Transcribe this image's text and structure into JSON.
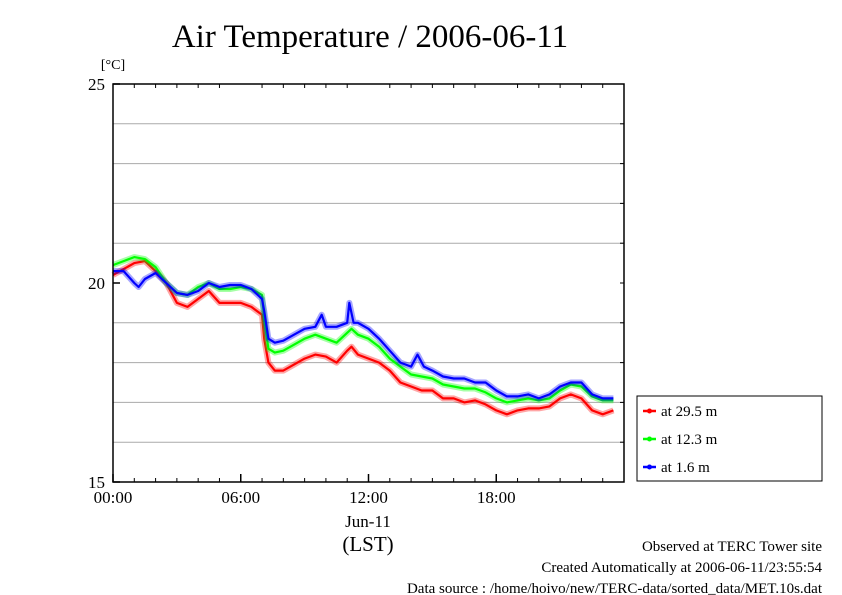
{
  "chart_data": {
    "type": "line",
    "title": "Air Temperature / 2006-06-11",
    "ylabel": "[°C]",
    "xlabel": "(LST)",
    "x_date_label": "Jun-11",
    "ylim": [
      15,
      25
    ],
    "y_ticks": [
      "15",
      "20",
      "25"
    ],
    "xlim": [
      0,
      24
    ],
    "x_ticks": [
      {
        "value": 0,
        "label": "00:00"
      },
      {
        "value": 6,
        "label": "06:00"
      },
      {
        "value": 12,
        "label": "12:00"
      },
      {
        "value": 18,
        "label": "18:00"
      }
    ],
    "y_grid": [
      16,
      17,
      18,
      19,
      21,
      22,
      23,
      24
    ],
    "grid": true,
    "legend_position": "bottom-right, outside plot",
    "series": [
      {
        "name": "at 29.5 m",
        "color": "#ff0000",
        "x": [
          0.0,
          0.5,
          1.0,
          1.5,
          2.0,
          2.5,
          3.0,
          3.5,
          4.0,
          4.5,
          5.0,
          5.5,
          6.0,
          6.5,
          7.0,
          7.1,
          7.3,
          7.6,
          8.0,
          8.5,
          9.0,
          9.5,
          10.0,
          10.5,
          11.0,
          11.2,
          11.5,
          12.0,
          12.5,
          13.0,
          13.5,
          14.0,
          14.5,
          15.0,
          15.5,
          16.0,
          16.5,
          17.0,
          17.5,
          18.0,
          18.5,
          19.0,
          19.5,
          20.0,
          20.5,
          21.0,
          21.5,
          22.0,
          22.5,
          23.0,
          23.5
        ],
        "values": [
          20.2,
          20.35,
          20.5,
          20.55,
          20.3,
          20.0,
          19.5,
          19.4,
          19.6,
          19.8,
          19.5,
          19.5,
          19.5,
          19.4,
          19.2,
          18.6,
          18.0,
          17.8,
          17.8,
          17.95,
          18.1,
          18.2,
          18.15,
          18.0,
          18.3,
          18.4,
          18.2,
          18.1,
          18.0,
          17.8,
          17.5,
          17.4,
          17.3,
          17.3,
          17.1,
          17.1,
          17.0,
          17.05,
          16.95,
          16.8,
          16.7,
          16.8,
          16.85,
          16.85,
          16.9,
          17.1,
          17.2,
          17.1,
          16.8,
          16.7,
          16.8
        ]
      },
      {
        "name": "at 12.3 m",
        "color": "#00ff00",
        "x": [
          0.0,
          0.5,
          1.0,
          1.5,
          2.0,
          2.5,
          3.0,
          3.5,
          4.0,
          4.5,
          5.0,
          5.5,
          6.0,
          6.5,
          7.0,
          7.1,
          7.3,
          7.6,
          8.0,
          8.5,
          9.0,
          9.5,
          10.0,
          10.5,
          11.0,
          11.2,
          11.5,
          12.0,
          12.5,
          13.0,
          13.5,
          14.0,
          14.5,
          15.0,
          15.5,
          16.0,
          16.5,
          17.0,
          17.5,
          18.0,
          18.5,
          19.0,
          19.5,
          20.0,
          20.5,
          21.0,
          21.5,
          22.0,
          22.5,
          23.0,
          23.5
        ],
        "values": [
          20.45,
          20.55,
          20.65,
          20.6,
          20.4,
          20.0,
          19.75,
          19.7,
          19.9,
          20.0,
          19.85,
          19.85,
          19.9,
          19.85,
          19.7,
          19.1,
          18.35,
          18.25,
          18.3,
          18.45,
          18.6,
          18.7,
          18.6,
          18.5,
          18.75,
          18.85,
          18.7,
          18.6,
          18.4,
          18.1,
          17.9,
          17.7,
          17.65,
          17.6,
          17.45,
          17.4,
          17.35,
          17.35,
          17.25,
          17.1,
          17.0,
          17.05,
          17.1,
          17.05,
          17.1,
          17.3,
          17.45,
          17.4,
          17.15,
          17.05,
          17.05
        ]
      },
      {
        "name": "at 1.6 m",
        "color": "#0000ff",
        "x": [
          0.0,
          0.5,
          1.0,
          1.2,
          1.5,
          2.0,
          2.5,
          3.0,
          3.5,
          4.0,
          4.5,
          5.0,
          5.5,
          6.0,
          6.5,
          7.0,
          7.1,
          7.3,
          7.6,
          8.0,
          8.5,
          9.0,
          9.5,
          9.8,
          10.0,
          10.5,
          11.0,
          11.1,
          11.3,
          11.5,
          12.0,
          12.5,
          13.0,
          13.5,
          14.0,
          14.3,
          14.6,
          15.0,
          15.5,
          16.0,
          16.5,
          17.0,
          17.5,
          18.0,
          18.5,
          19.0,
          19.5,
          20.0,
          20.5,
          21.0,
          21.5,
          22.0,
          22.5,
          23.0,
          23.5
        ],
        "values": [
          20.3,
          20.3,
          20.0,
          19.9,
          20.1,
          20.25,
          20.0,
          19.75,
          19.7,
          19.8,
          20.0,
          19.9,
          19.95,
          19.95,
          19.85,
          19.6,
          19.3,
          18.6,
          18.5,
          18.55,
          18.7,
          18.85,
          18.9,
          19.2,
          18.9,
          18.9,
          19.0,
          19.5,
          19.0,
          19.0,
          18.85,
          18.6,
          18.3,
          18.0,
          17.9,
          18.2,
          17.9,
          17.8,
          17.65,
          17.6,
          17.6,
          17.5,
          17.5,
          17.3,
          17.15,
          17.15,
          17.2,
          17.1,
          17.2,
          17.4,
          17.5,
          17.5,
          17.2,
          17.1,
          17.1
        ]
      }
    ]
  },
  "footer": {
    "line1": "Observed at TERC Tower site",
    "line2": "Created Automatically at 2006-06-11/23:55:54",
    "line3": "Data source : /home/hoivo/new/TERC-data/sorted_data/MET.10s.dat"
  }
}
